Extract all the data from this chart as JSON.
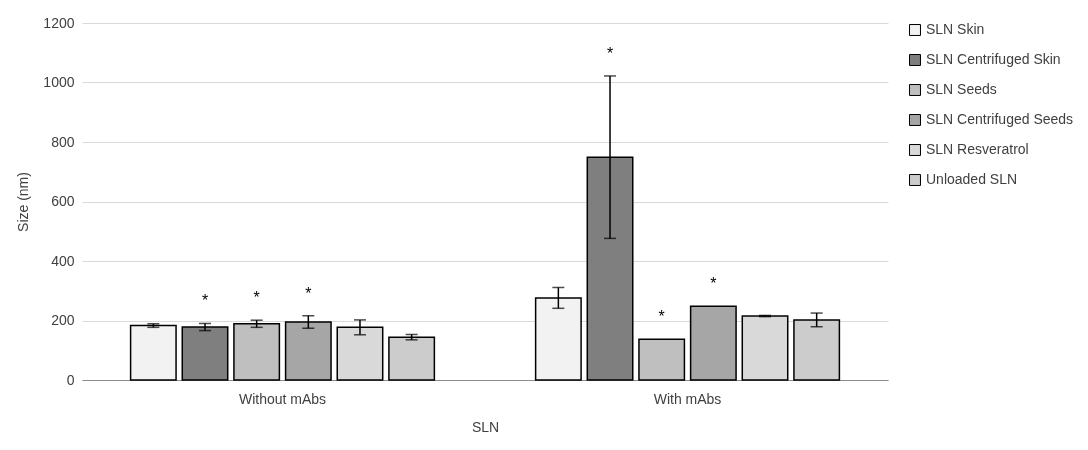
{
  "chart_data": {
    "type": "bar",
    "xlabel": "SLN",
    "ylabel": "Size (nm)",
    "categories": [
      "Without mAbs",
      "With mAbs"
    ],
    "ylim": [
      0,
      1200
    ],
    "yticks": [
      0,
      200,
      400,
      600,
      800,
      1000,
      1200
    ],
    "grid": "y",
    "legend": "right",
    "series": [
      {
        "name": "SLN Skin",
        "color": "#f2f2f2",
        "values": [
          183,
          276
        ],
        "errors": [
          6,
          35
        ]
      },
      {
        "name": "SLN Centrifuged Skin",
        "color": "#7f7f7f",
        "values": [
          178,
          749
        ],
        "errors": [
          12,
          273
        ]
      },
      {
        "name": "SLN Seeds",
        "color": "#bfbfbf",
        "values": [
          189,
          137
        ],
        "errors": [
          12,
          null
        ]
      },
      {
        "name": "SLN Centrifuged Seeds",
        "color": "#a6a6a6",
        "values": [
          195,
          248
        ],
        "errors": [
          21,
          null
        ]
      },
      {
        "name": "SLN Resveratrol",
        "color": "#d9d9d9",
        "values": [
          177,
          215
        ],
        "errors": [
          25,
          2
        ]
      },
      {
        "name": "Unloaded SLN",
        "color": "#cccccc",
        "values": [
          144,
          202
        ],
        "errors": [
          9,
          23
        ]
      }
    ],
    "annotations": [
      "*",
      "*",
      "*",
      "*",
      "*",
      "*"
    ]
  }
}
